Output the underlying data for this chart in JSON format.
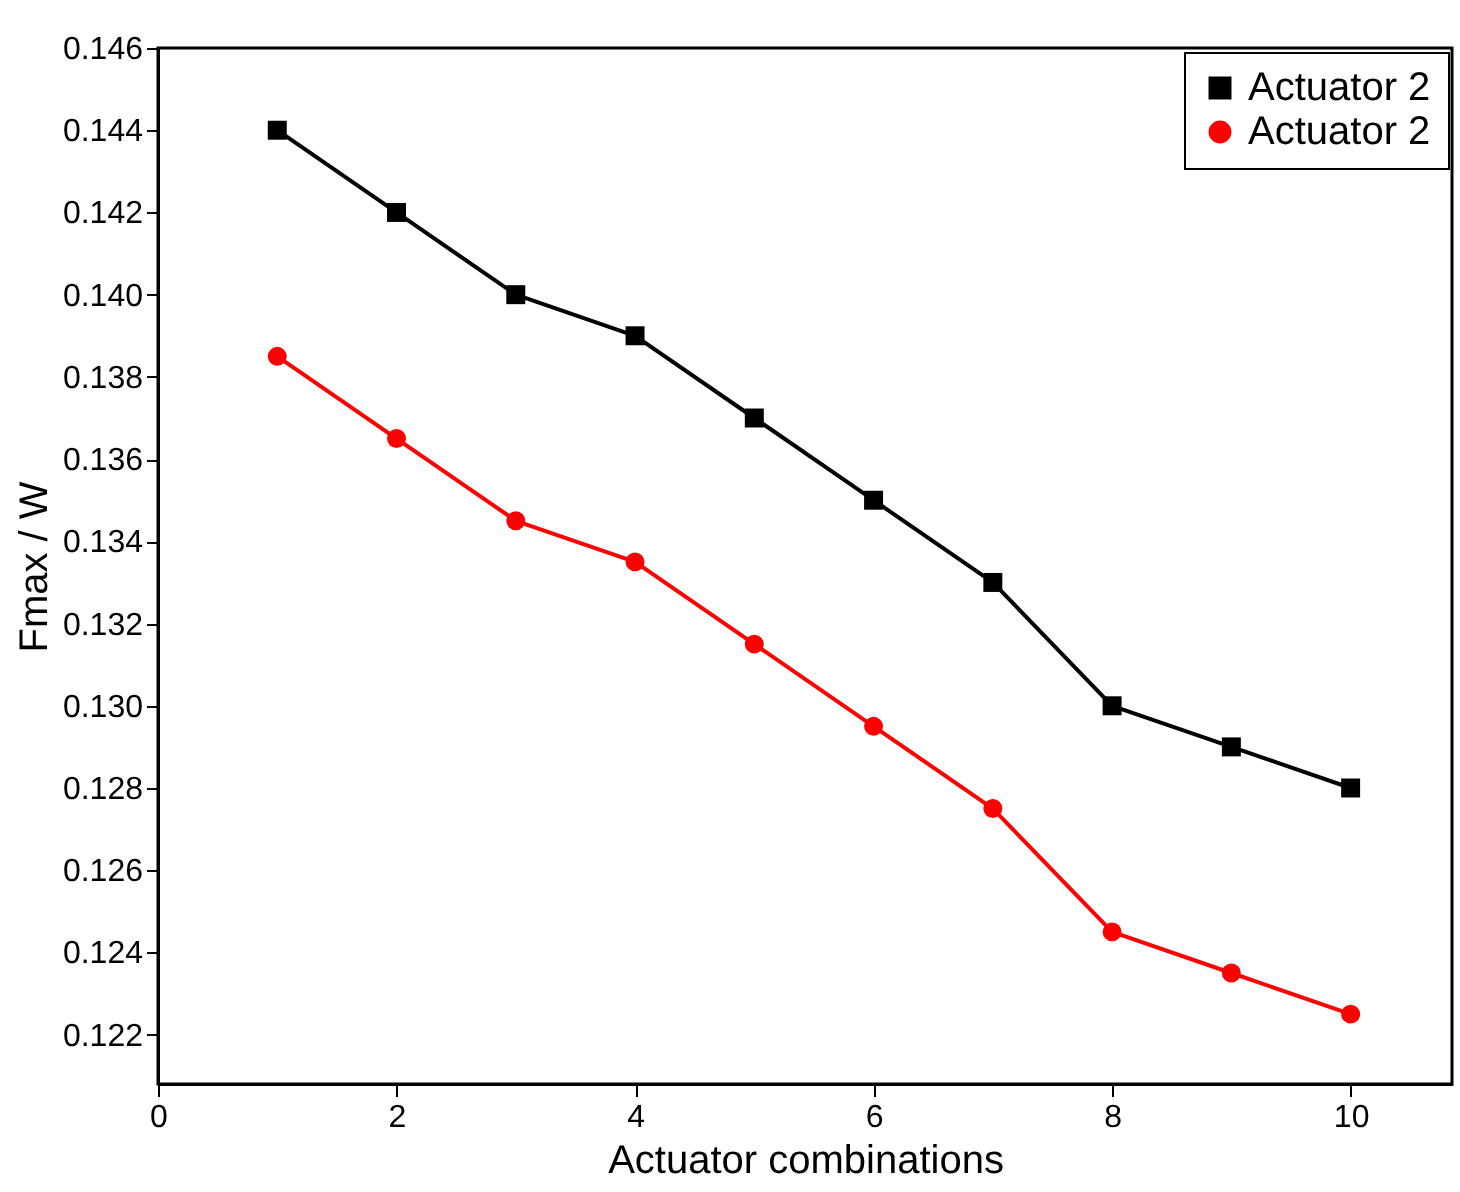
{
  "chart_data": {
    "type": "line",
    "xlabel": "Actuator combinations",
    "ylabel": "Fmax / W",
    "x": [
      1,
      2,
      3,
      4,
      5,
      6,
      7,
      8,
      9,
      10
    ],
    "series": [
      {
        "name": "Actuator 2",
        "color": "#000000",
        "marker": "square",
        "values": [
          0.144,
          0.142,
          0.14,
          0.139,
          0.137,
          0.135,
          0.133,
          0.13,
          0.129,
          0.128
        ]
      },
      {
        "name": "Actuator 2",
        "color": "#ff0000",
        "marker": "circle",
        "values": [
          0.1385,
          0.1365,
          0.1345,
          0.1335,
          0.1315,
          0.1295,
          0.1275,
          0.1245,
          0.1235,
          0.1225
        ]
      }
    ],
    "xlim": [
      0,
      10.85
    ],
    "xticks": [
      0,
      2,
      4,
      6,
      8,
      10
    ],
    "ylim": [
      0.1208,
      0.146
    ],
    "yticks": [
      {
        "value": 0.122,
        "label": "0.122"
      },
      {
        "value": 0.124,
        "label": "0.124"
      },
      {
        "value": 0.126,
        "label": "0.126"
      },
      {
        "value": 0.128,
        "label": "0.128"
      },
      {
        "value": 0.13,
        "label": "0.130"
      },
      {
        "value": 0.132,
        "label": "0.132"
      },
      {
        "value": 0.134,
        "label": "0.134"
      },
      {
        "value": 0.136,
        "label": "0.136"
      },
      {
        "value": 0.138,
        "label": "0.138"
      },
      {
        "value": 0.14,
        "label": "0.140"
      },
      {
        "value": 0.142,
        "label": "0.142"
      },
      {
        "value": 0.144,
        "label": "0.144"
      },
      {
        "value": 0.146,
        "label": "0.146"
      }
    ],
    "grid": false,
    "legend": "top right",
    "line_style": "solid"
  }
}
